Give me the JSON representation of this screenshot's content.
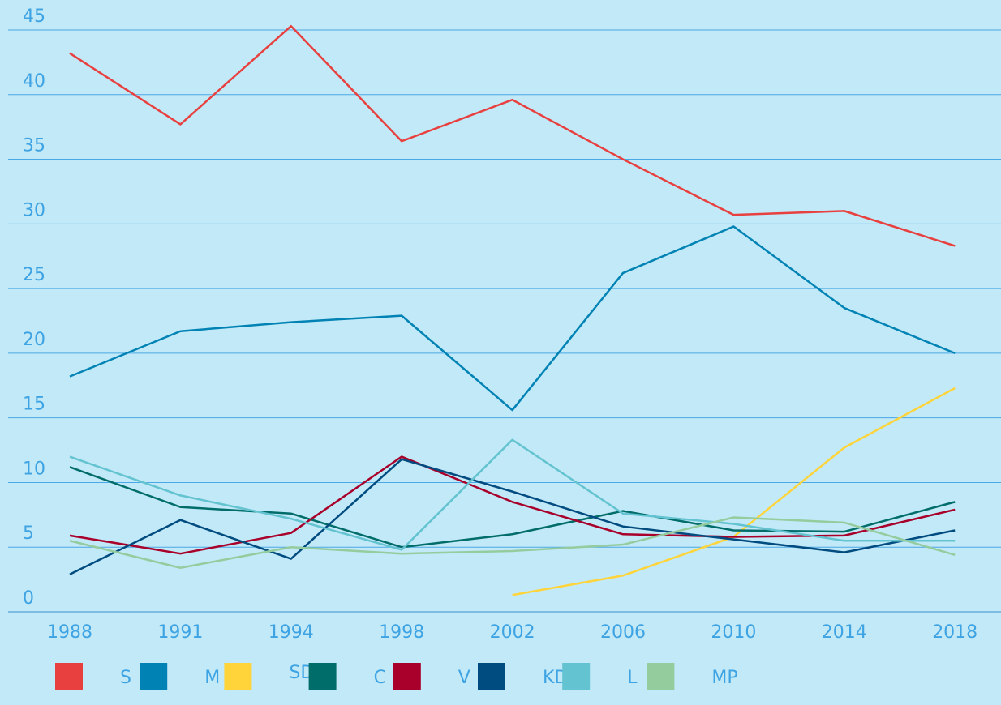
{
  "chart_data": {
    "type": "line",
    "categories": [
      "1988",
      "1991",
      "1994",
      "1998",
      "2002",
      "2006",
      "2010",
      "2014",
      "2018"
    ],
    "series": [
      {
        "name": "S",
        "color": "#e8403f",
        "values": [
          43.2,
          37.7,
          45.3,
          36.4,
          39.6,
          35.0,
          30.7,
          31.0,
          28.3
        ]
      },
      {
        "name": "M",
        "color": "#0083b4",
        "values": [
          18.2,
          21.7,
          22.4,
          22.9,
          15.6,
          26.2,
          29.8,
          23.5,
          20.0
        ]
      },
      {
        "name": "SD",
        "color": "#ffd43b",
        "values": [
          null,
          null,
          null,
          null,
          1.3,
          2.8,
          5.8,
          12.7,
          17.3
        ]
      },
      {
        "name": "C",
        "color": "#006d6a",
        "values": [
          11.2,
          8.1,
          7.6,
          5.0,
          6.0,
          7.8,
          6.3,
          6.2,
          8.5
        ]
      },
      {
        "name": "V",
        "color": "#a8002a",
        "values": [
          5.9,
          4.5,
          6.1,
          12.0,
          8.5,
          6.0,
          5.8,
          5.9,
          7.9
        ]
      },
      {
        "name": "KD",
        "color": "#004b7f",
        "values": [
          2.9,
          7.1,
          4.1,
          11.8,
          9.3,
          6.6,
          5.6,
          4.6,
          6.3
        ]
      },
      {
        "name": "L",
        "color": "#64c3d0",
        "values": [
          12.0,
          9.0,
          7.2,
          4.8,
          13.3,
          7.6,
          6.8,
          5.5,
          5.5
        ]
      },
      {
        "name": "MP",
        "color": "#94cc9e",
        "values": [
          5.5,
          3.4,
          5.0,
          4.5,
          4.7,
          5.2,
          7.3,
          6.9,
          4.4
        ]
      }
    ],
    "ylim": [
      0,
      45
    ],
    "yticks": [
      0,
      5,
      10,
      15,
      20,
      25,
      30,
      35,
      40,
      45
    ],
    "grid": true,
    "legend": "bottom"
  }
}
